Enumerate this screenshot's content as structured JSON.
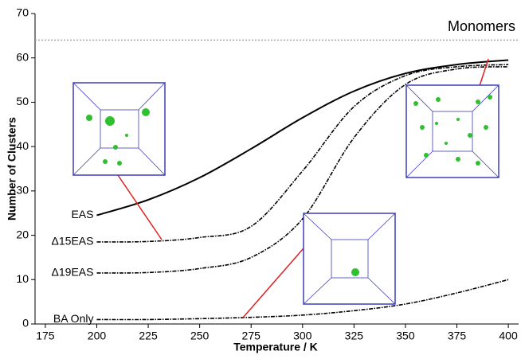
{
  "chart_data": {
    "type": "line",
    "x_label": "Temperature / K",
    "y_label": "Number of Clusters",
    "x": [
      200,
      225,
      250,
      275,
      300,
      325,
      350,
      375,
      400
    ],
    "series": [
      {
        "name": "EAS",
        "color": "#000000",
        "dash": false,
        "values": [
          24.5,
          28,
          33,
          39.5,
          46.5,
          52.5,
          56.5,
          58.5,
          59.5
        ]
      },
      {
        "name": "Δ15EAS",
        "color": "#000000",
        "dash": true,
        "values": [
          18.5,
          18.6,
          19.5,
          22,
          34.5,
          49,
          56,
          58,
          58.5
        ]
      },
      {
        "name": "Δ19EAS",
        "color": "#000000",
        "dash": true,
        "values": [
          11.5,
          11.6,
          12.5,
          15,
          23.7,
          42,
          54,
          57.5,
          58
        ]
      },
      {
        "name": "BA Only",
        "color": "#000000",
        "dash": true,
        "values": [
          1,
          1,
          1.2,
          1.5,
          2,
          3,
          4.5,
          7,
          10
        ]
      }
    ],
    "reference_line": {
      "label": "Monomers",
      "value": 64,
      "color": "#aaaaaa"
    },
    "xlim": [
      170,
      405
    ],
    "ylim": [
      0,
      70
    ],
    "xticks": [
      175,
      200,
      225,
      250,
      275,
      300,
      325,
      350,
      375,
      400
    ],
    "yticks": [
      0,
      10,
      20,
      30,
      40,
      50,
      60,
      70
    ]
  }
}
